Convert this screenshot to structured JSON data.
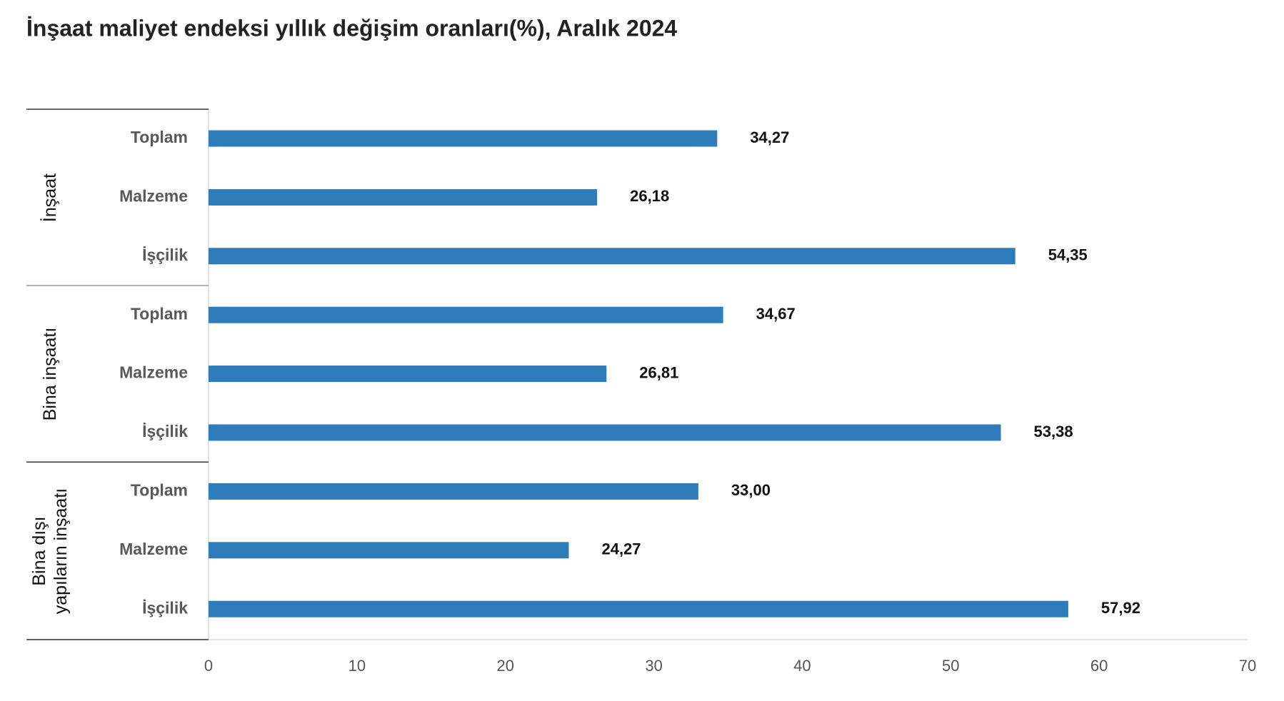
{
  "chart_data": {
    "type": "bar",
    "orientation": "horizontal",
    "title": "İnşaat maliyet endeksi yıllık değişim oranları(%), Aralık 2024",
    "color": "#2f7cba",
    "groups": [
      {
        "name": "İnşaat",
        "categories": [
          "Toplam",
          "Malzeme",
          "İşçilik"
        ],
        "values": [
          34.27,
          26.18,
          54.35
        ],
        "value_labels": [
          "34,27",
          "26,18",
          "54,35"
        ]
      },
      {
        "name": "Bina inşaatı",
        "categories": [
          "Toplam",
          "Malzeme",
          "İşçilik"
        ],
        "values": [
          34.67,
          26.81,
          53.38
        ],
        "value_labels": [
          "34,67",
          "26,81",
          "53,38"
        ]
      },
      {
        "name": "Bina dışı yapıların inşaatı",
        "categories": [
          "Toplam",
          "Malzeme",
          "İşçilik"
        ],
        "values": [
          33.0,
          24.27,
          57.92
        ],
        "value_labels": [
          "33,00",
          "24,27",
          "57,92"
        ]
      }
    ],
    "xlim": [
      0,
      70
    ],
    "xticks": [
      0,
      10,
      20,
      30,
      40,
      50,
      60,
      70
    ]
  }
}
